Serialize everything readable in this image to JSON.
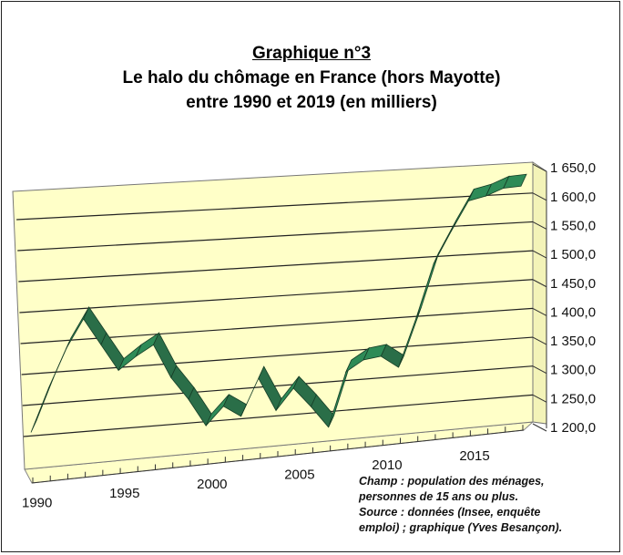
{
  "title": {
    "line1": "Graphique n°3",
    "line2": "Le halo du chômage en France (hors Mayotte)",
    "line3": "entre 1990 et 2019 (en milliers)"
  },
  "note": [
    "Champ : population des ménages,",
    "personnes de 15 ans ou plus.",
    "Source : données (Insee, enquête",
    "emploi) ; graphique (Yves Besançon)."
  ],
  "colors": {
    "wall": "#ffffc8",
    "series": "#2e8b57",
    "series_edge": "#163d26",
    "grid": "#222222"
  },
  "chart_data": {
    "type": "line",
    "style": "3d-ribbon",
    "title": "Le halo du chômage en France (hors Mayotte) entre 1990 et 2019 (en milliers)",
    "xlabel": "",
    "ylabel": "",
    "x": [
      1990,
      1991,
      1992,
      1993,
      1994,
      1995,
      1996,
      1997,
      1998,
      1999,
      2000,
      2001,
      2002,
      2003,
      2004,
      2005,
      2006,
      2007,
      2008,
      2009,
      2010,
      2011,
      2012,
      2013,
      2014,
      2015,
      2016,
      2017,
      2018
    ],
    "series": [
      {
        "name": "Halo du chômage",
        "values": [
          1274,
          1343,
          1405,
          1452,
          1408,
          1364,
          1385,
          1402,
          1346,
          1308,
          1262,
          1292,
          1273,
          1334,
          1278,
          1313,
          1280,
          1243,
          1334,
          1352,
          1356,
          1335,
          1416,
          1507,
          1561,
          1612,
          1619,
          1631,
          1633
        ]
      }
    ],
    "ylim": [
      1200,
      1650
    ],
    "yticks": [
      "1 200,0",
      "1 250,0",
      "1 300,0",
      "1 350,0",
      "1 400,0",
      "1 450,0",
      "1 500,0",
      "1 550,0",
      "1 600,0",
      "1 650,0"
    ],
    "xticks": [
      "1990",
      "1995",
      "2000",
      "2005",
      "2010",
      "2015"
    ],
    "grid": true,
    "legend": "none"
  }
}
